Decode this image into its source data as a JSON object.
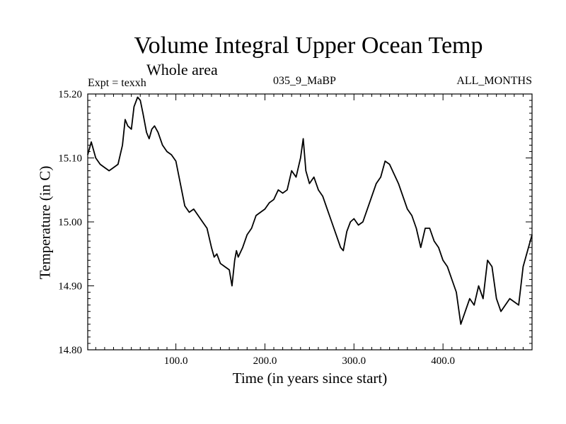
{
  "header": {
    "expt": "Expt = texxh",
    "run": "035_9_MaBP",
    "months": "ALL_MONTHS"
  },
  "chart_data": {
    "type": "line",
    "title": "Volume Integral Upper Ocean Temp",
    "subtitle": "Whole area",
    "xlabel": "Time (in years since start)",
    "ylabel": "Temperature (in C)",
    "xlim": [
      1,
      500
    ],
    "ylim": [
      14.8,
      15.2
    ],
    "xticks": [
      100,
      200,
      300,
      400
    ],
    "xtick_labels": [
      "100.0",
      "200.0",
      "300.0",
      "400.0"
    ],
    "yticks": [
      14.8,
      14.9,
      15.0,
      15.1,
      15.2
    ],
    "ytick_labels": [
      "14.80",
      "14.90",
      "15.00",
      "15.10",
      "15.20"
    ],
    "series": [
      {
        "name": "Upper Ocean Temp",
        "color": "#000000",
        "x": [
          1,
          5,
          10,
          15,
          20,
          25,
          30,
          35,
          40,
          43,
          46,
          50,
          53,
          57,
          60,
          63,
          67,
          70,
          73,
          76,
          80,
          85,
          90,
          95,
          100,
          105,
          110,
          115,
          120,
          125,
          130,
          135,
          140,
          143,
          146,
          150,
          155,
          160,
          163,
          166,
          168,
          170,
          175,
          180,
          185,
          190,
          195,
          200,
          205,
          210,
          215,
          220,
          225,
          230,
          235,
          240,
          243,
          246,
          250,
          255,
          260,
          265,
          270,
          275,
          280,
          285,
          288,
          292,
          296,
          300,
          305,
          310,
          315,
          320,
          325,
          330,
          335,
          340,
          345,
          350,
          355,
          360,
          365,
          370,
          375,
          380,
          385,
          390,
          395,
          400,
          405,
          410,
          415,
          420,
          425,
          430,
          435,
          440,
          445,
          450,
          455,
          460,
          465,
          470,
          475,
          480,
          485,
          490,
          495,
          500
        ],
        "y": [
          15.105,
          15.125,
          15.1,
          15.09,
          15.085,
          15.08,
          15.085,
          15.09,
          15.12,
          15.16,
          15.15,
          15.145,
          15.18,
          15.195,
          15.19,
          15.17,
          15.14,
          15.13,
          15.145,
          15.15,
          15.14,
          15.12,
          15.11,
          15.105,
          15.095,
          15.06,
          15.025,
          15.015,
          15.02,
          15.01,
          15.0,
          14.99,
          14.96,
          14.945,
          14.95,
          14.935,
          14.93,
          14.925,
          14.9,
          14.94,
          14.955,
          14.945,
          14.96,
          14.98,
          14.99,
          15.01,
          15.015,
          15.02,
          15.03,
          15.035,
          15.05,
          15.045,
          15.05,
          15.08,
          15.07,
          15.1,
          15.13,
          15.08,
          15.06,
          15.07,
          15.05,
          15.04,
          15.02,
          15.0,
          14.98,
          14.96,
          14.955,
          14.985,
          15.0,
          15.005,
          14.995,
          15.0,
          15.02,
          15.04,
          15.06,
          15.07,
          15.095,
          15.09,
          15.075,
          15.06,
          15.04,
          15.02,
          15.01,
          14.99,
          14.96,
          14.99,
          14.99,
          14.97,
          14.96,
          14.94,
          14.93,
          14.91,
          14.89,
          14.84,
          14.86,
          14.88,
          14.87,
          14.9,
          14.88,
          14.94,
          14.93,
          14.88,
          14.86,
          14.87,
          14.88,
          14.875,
          14.87,
          14.93,
          14.955,
          14.98
        ]
      }
    ]
  }
}
